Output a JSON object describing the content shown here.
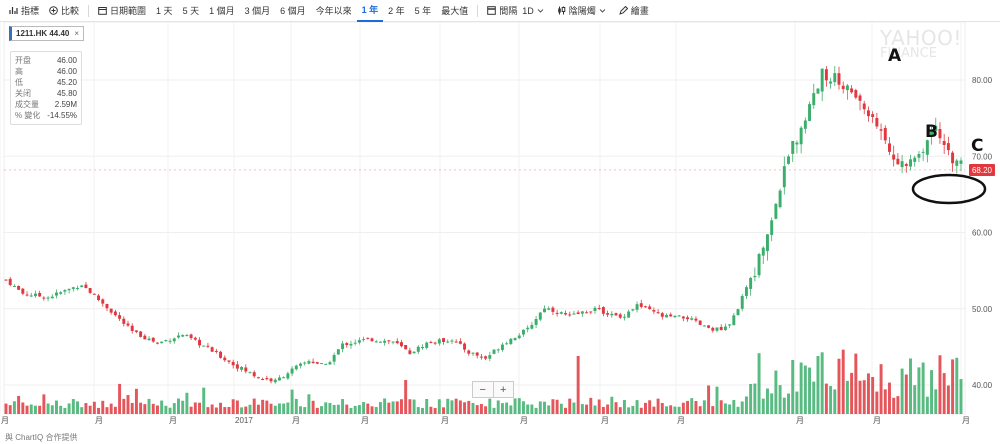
{
  "toolbar": {
    "indicators": "指標",
    "compare": "比較",
    "date_range": "日期範圍",
    "ranges": [
      "1 天",
      "5 天",
      "1 個月",
      "3 個月",
      "6 個月",
      "今年以來",
      "1 年",
      "2 年",
      "5 年",
      "最大值"
    ],
    "active_range": "1 年",
    "interval_label": "間隔",
    "interval_value": "1D",
    "chart_type": "陰陽燭",
    "draw": "繪畫"
  },
  "symbol_chip": {
    "label": "1211.HK 44.40",
    "close": "×"
  },
  "ohlc": {
    "rows": [
      {
        "label": "开盘",
        "value": "46.00"
      },
      {
        "label": "高",
        "value": "46.00"
      },
      {
        "label": "低",
        "value": "45.20"
      },
      {
        "label": "关闭",
        "value": "45.80"
      },
      {
        "label": "成交量",
        "value": "2.59M"
      },
      {
        "label": "% 變化",
        "value": "-14.55%"
      }
    ]
  },
  "brand": {
    "line1": "YAHOO!",
    "line2": "FINANCE"
  },
  "annotations": {
    "a": "A",
    "b": "B",
    "c": "C"
  },
  "zoom": {
    "minus": "−",
    "plus": "+"
  },
  "attribution": "與 ChartIQ 合作提供",
  "price_tag": "68.20",
  "colors": {
    "up": "#3cae6c",
    "down": "#e0383e",
    "accent": "#1a6dd8"
  },
  "chart_data": {
    "type": "candlestick",
    "y_ticks": [
      "80.00",
      "70.00",
      "60.00",
      "50.00",
      "40.00"
    ],
    "ylim": [
      36.5,
      85.5
    ],
    "x_labels": [
      "月",
      "月",
      "月",
      "2017",
      "月",
      "月",
      "月",
      "月",
      "月",
      "月",
      "月",
      "月",
      "月"
    ],
    "last_price": 68.2,
    "price_path": [
      [
        0,
        53.8
      ],
      [
        4,
        52.0
      ],
      [
        10,
        51.5
      ],
      [
        18,
        53.2
      ],
      [
        24,
        50.2
      ],
      [
        30,
        47.0
      ],
      [
        36,
        45.5
      ],
      [
        42,
        46.6
      ],
      [
        48,
        44.8
      ],
      [
        54,
        42.7
      ],
      [
        60,
        41.0
      ],
      [
        64,
        40.5
      ],
      [
        68,
        42.0
      ],
      [
        72,
        43.2
      ],
      [
        76,
        42.5
      ],
      [
        80,
        45.3
      ],
      [
        86,
        46.0
      ],
      [
        92,
        45.7
      ],
      [
        96,
        44.2
      ],
      [
        100,
        45.5
      ],
      [
        106,
        46.0
      ],
      [
        110,
        44.3
      ],
      [
        114,
        43.5
      ],
      [
        118,
        45.4
      ],
      [
        124,
        47.3
      ],
      [
        128,
        50.2
      ],
      [
        134,
        49.0
      ],
      [
        140,
        50.0
      ],
      [
        146,
        48.8
      ],
      [
        150,
        50.5
      ],
      [
        156,
        49.0
      ],
      [
        162,
        48.8
      ],
      [
        166,
        47.6
      ],
      [
        170,
        47.2
      ],
      [
        172,
        47.8
      ],
      [
        178,
        55.0
      ],
      [
        182,
        62.0
      ],
      [
        186,
        70.0
      ],
      [
        190,
        75.0
      ],
      [
        194,
        81.0
      ],
      [
        198,
        80.0
      ],
      [
        202,
        77.6
      ],
      [
        206,
        75.0
      ],
      [
        210,
        70.5
      ],
      [
        214,
        68.5
      ],
      [
        218,
        71.0
      ],
      [
        220,
        74.0
      ],
      [
        222,
        72.5
      ],
      [
        226,
        69.0
      ]
    ]
  }
}
